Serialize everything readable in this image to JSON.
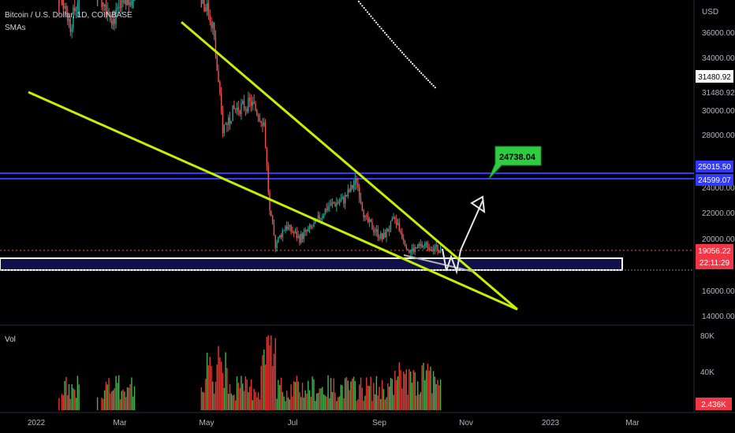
{
  "header": {
    "symbol_line": "Bitcoin / U.S. Dollar, 1D, COINBASE",
    "indicator": "SMAs"
  },
  "volume_pane": {
    "label": "Vol"
  },
  "price_axis": {
    "currency": "USD",
    "ticks": [
      "36000.00",
      "34000.00",
      "30000.00",
      "28000.00",
      "24000.00",
      "22000.00",
      "20000.00",
      "16000.00",
      "14000.00"
    ]
  },
  "volume_axis": {
    "ticks": [
      "80K",
      "40K"
    ]
  },
  "time_axis": {
    "labels": [
      "2022",
      "Mar",
      "May",
      "Jul",
      "Sep",
      "Nov",
      "2023",
      "Mar"
    ]
  },
  "badges": {
    "price_upper": "31480.92",
    "price_upper_2": "31480.92",
    "level_high": "25015.50",
    "level_low": "24599.07",
    "last_price": "19056.22",
    "countdown": "22:11:29",
    "volume_last": "2.436K",
    "callout": "24738.04"
  },
  "colors": {
    "up": "#26a69a",
    "down": "#ef5350",
    "vol_up": "#4caf50",
    "vol_down": "#e53935",
    "trendline": "#c6f000",
    "blue_level": "#2f39ff",
    "support_fill": "#10104a",
    "sma": "#ffffff",
    "callout": "#2ecc40",
    "last_price_badge": "#f23645"
  },
  "chart_data": {
    "type": "candlestick",
    "title": "Bitcoin / U.S. Dollar, 1D, COINBASE",
    "ylim": [
      13000,
      38000
    ],
    "x_labels": [
      "2022",
      "Mar",
      "May",
      "Jul",
      "Sep",
      "Nov",
      "2023",
      "Mar"
    ],
    "levels": [
      25015.5,
      24599.07
    ],
    "support_zone": [
      17700,
      18600
    ],
    "last_price": 19056.22,
    "callout_value": 24738.04,
    "series": [
      {
        "name": "Price",
        "close_path": [
          {
            "x": "2022-04-20",
            "y": 41500
          },
          {
            "x": "2022-05-05",
            "y": 36500
          },
          {
            "x": "2022-05-12",
            "y": 28500
          },
          {
            "x": "2022-05-20",
            "y": 30000
          },
          {
            "x": "2022-06-01",
            "y": 30500
          },
          {
            "x": "2022-06-10",
            "y": 29000
          },
          {
            "x": "2022-06-14",
            "y": 22000
          },
          {
            "x": "2022-06-18",
            "y": 19500
          },
          {
            "x": "2022-06-25",
            "y": 21000
          },
          {
            "x": "2022-07-05",
            "y": 20000
          },
          {
            "x": "2022-07-15",
            "y": 21000
          },
          {
            "x": "2022-07-25",
            "y": 22500
          },
          {
            "x": "2022-08-05",
            "y": 23000
          },
          {
            "x": "2022-08-14",
            "y": 24500
          },
          {
            "x": "2022-08-20",
            "y": 21500
          },
          {
            "x": "2022-09-01",
            "y": 20000
          },
          {
            "x": "2022-09-10",
            "y": 21500
          },
          {
            "x": "2022-09-20",
            "y": 19000
          },
          {
            "x": "2022-10-01",
            "y": 19500
          },
          {
            "x": "2022-10-13",
            "y": 19056
          }
        ]
      }
    ]
  }
}
